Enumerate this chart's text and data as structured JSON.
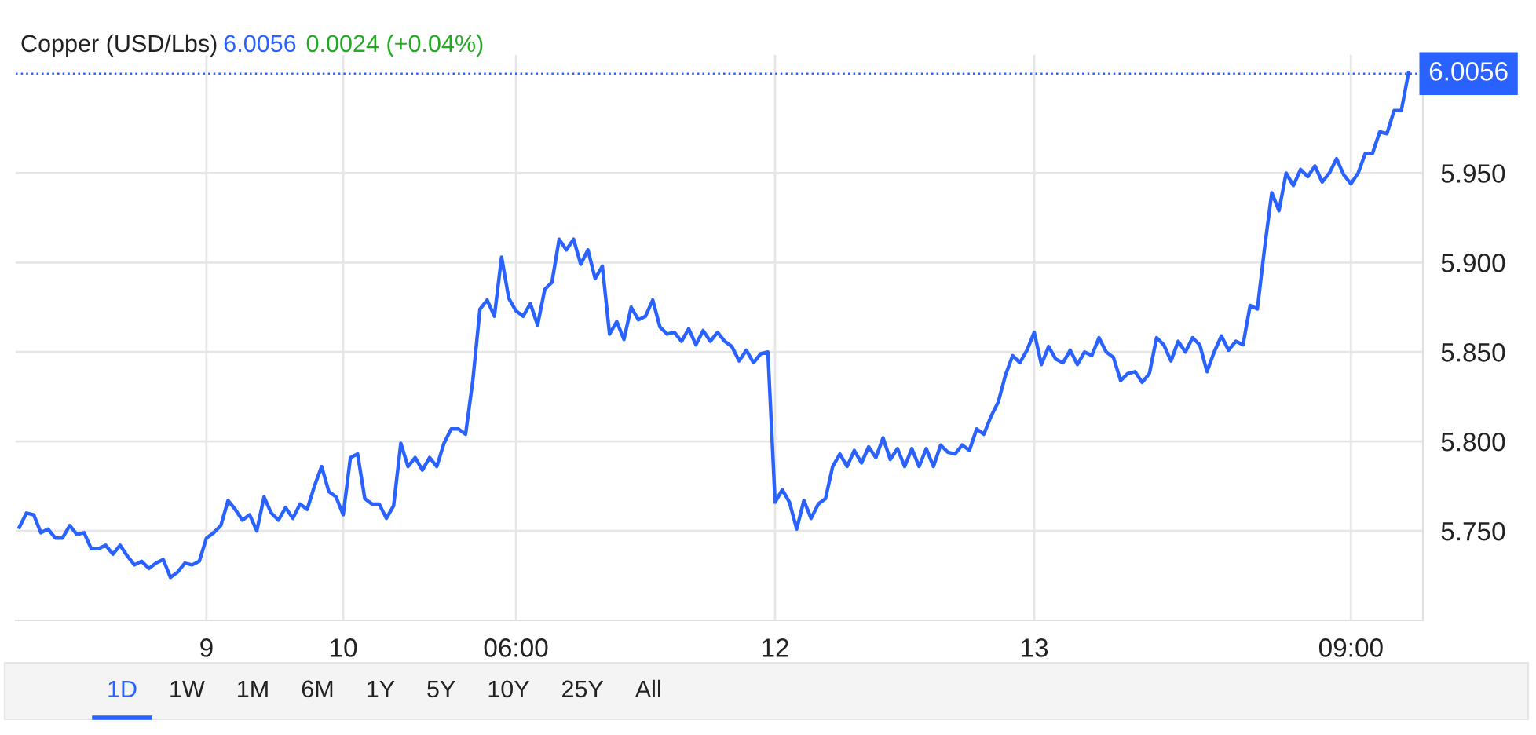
{
  "chart_data": {
    "type": "line",
    "title": "Copper (USD/Lbs)",
    "annotations": [
      "6.0056",
      "0.0024 (+0.04%)",
      "1D",
      "1W",
      "1M",
      "6M",
      "1Y",
      "5Y",
      "10Y",
      "25Y",
      "All"
    ],
    "categories": [
      null,
      null,
      null,
      null,
      null,
      null,
      null,
      null,
      null,
      null,
      null,
      null,
      null,
      null,
      null,
      null,
      null,
      null,
      null,
      null,
      null,
      null,
      null,
      null,
      null,
      null,
      "9",
      null,
      null,
      null,
      null,
      null,
      null,
      null,
      null,
      null,
      null,
      null,
      null,
      null,
      null,
      null,
      null,
      null,
      null,
      "10",
      null,
      null,
      null,
      null,
      null,
      null,
      null,
      null,
      null,
      null,
      null,
      null,
      null,
      null,
      null,
      null,
      null,
      null,
      null,
      null,
      null,
      null,
      null,
      "06:00",
      null,
      null,
      null,
      null,
      null,
      null,
      null,
      null,
      null,
      null,
      null,
      null,
      null,
      null,
      null,
      null,
      null,
      null,
      null,
      null,
      null,
      null,
      null,
      null,
      null,
      null,
      null,
      null,
      null,
      null,
      null,
      null,
      null,
      null,
      null,
      "12",
      null,
      null,
      null,
      null,
      null,
      null,
      null,
      null,
      null,
      null,
      null,
      null,
      null,
      null,
      null,
      null,
      null,
      null,
      null,
      null,
      null,
      null,
      null,
      null,
      null,
      null,
      null,
      null,
      null,
      null,
      null,
      null,
      null,
      null,
      null,
      "13",
      null,
      null,
      null,
      null,
      null,
      null,
      null,
      null,
      null,
      null,
      null,
      null,
      null,
      null,
      null,
      null,
      null,
      null,
      null,
      null,
      null,
      null,
      null,
      null,
      null,
      null,
      null,
      null,
      null,
      null,
      null,
      null,
      null,
      null,
      null,
      null,
      null,
      null,
      null,
      null,
      null,
      null,
      null,
      "09:00",
      null,
      null,
      null,
      null,
      null,
      null,
      null,
      null
    ],
    "series": [
      {
        "color": "#2962ff",
        "values": [
          5.752,
          5.76,
          5.759,
          5.749,
          5.751,
          5.746,
          5.746,
          5.753,
          5.748,
          5.749,
          5.74,
          5.74,
          5.742,
          5.737,
          5.742,
          5.736,
          5.731,
          5.733,
          5.729,
          5.732,
          5.734,
          5.724,
          5.727,
          5.732,
          5.731,
          5.733,
          5.746,
          5.749,
          5.753,
          5.767,
          5.762,
          5.756,
          5.759,
          5.75,
          5.769,
          5.76,
          5.756,
          5.763,
          5.757,
          5.765,
          5.762,
          5.775,
          5.786,
          5.772,
          5.769,
          5.759,
          5.791,
          5.793,
          5.768,
          5.765,
          5.765,
          5.757,
          5.764,
          5.799,
          5.786,
          5.791,
          5.784,
          5.791,
          5.786,
          5.799,
          5.807,
          5.807,
          5.804,
          5.834,
          5.874,
          5.879,
          5.87,
          5.903,
          5.88,
          5.873,
          5.87,
          5.877,
          5.865,
          5.885,
          5.889,
          5.913,
          5.907,
          5.913,
          5.899,
          5.907,
          5.891,
          5.898,
          5.86,
          5.867,
          5.857,
          5.875,
          5.868,
          5.87,
          5.879,
          5.864,
          5.86,
          5.861,
          5.856,
          5.863,
          5.854,
          5.862,
          5.856,
          5.861,
          5.856,
          5.853,
          5.845,
          5.851,
          5.844,
          5.849,
          5.85,
          5.766,
          5.773,
          5.766,
          5.751,
          5.767,
          5.757,
          5.765,
          5.768,
          5.786,
          5.793,
          5.786,
          5.795,
          5.788,
          5.797,
          5.791,
          5.802,
          5.79,
          5.796,
          5.786,
          5.796,
          5.786,
          5.796,
          5.786,
          5.798,
          5.794,
          5.793,
          5.798,
          5.795,
          5.807,
          5.804,
          5.814,
          5.822,
          5.837,
          5.848,
          5.844,
          5.851,
          5.861,
          5.843,
          5.853,
          5.846,
          5.844,
          5.851,
          5.843,
          5.85,
          5.848,
          5.858,
          5.85,
          5.847,
          5.834,
          5.838,
          5.839,
          5.833,
          5.838,
          5.858,
          5.854,
          5.845,
          5.856,
          5.85,
          5.858,
          5.854,
          5.839,
          5.85,
          5.859,
          5.851,
          5.856,
          5.854,
          5.876,
          5.874,
          5.908,
          5.939,
          5.929,
          5.95,
          5.943,
          5.952,
          5.948,
          5.954,
          5.945,
          5.95,
          5.958,
          5.949,
          5.944,
          5.95,
          5.961,
          5.961,
          5.973,
          5.972,
          5.985,
          5.985,
          6.006
        ]
      }
    ],
    "ylim": [
      5.7,
      6.016
    ],
    "yticks": [
      {
        "value": 5.75,
        "label": "5.750"
      },
      {
        "value": 5.8,
        "label": "5.800"
      },
      {
        "value": 5.85,
        "label": "5.850"
      },
      {
        "value": 5.9,
        "label": "5.900"
      },
      {
        "value": 5.95,
        "label": "5.950"
      }
    ],
    "ref_lines": [
      {
        "axis": "y",
        "value": 6.0056,
        "label": "6.0056",
        "color": "#2962ff",
        "line_style": "dotted"
      }
    ],
    "grid": true,
    "legend": false,
    "marker": "none",
    "line_style": "solid"
  }
}
